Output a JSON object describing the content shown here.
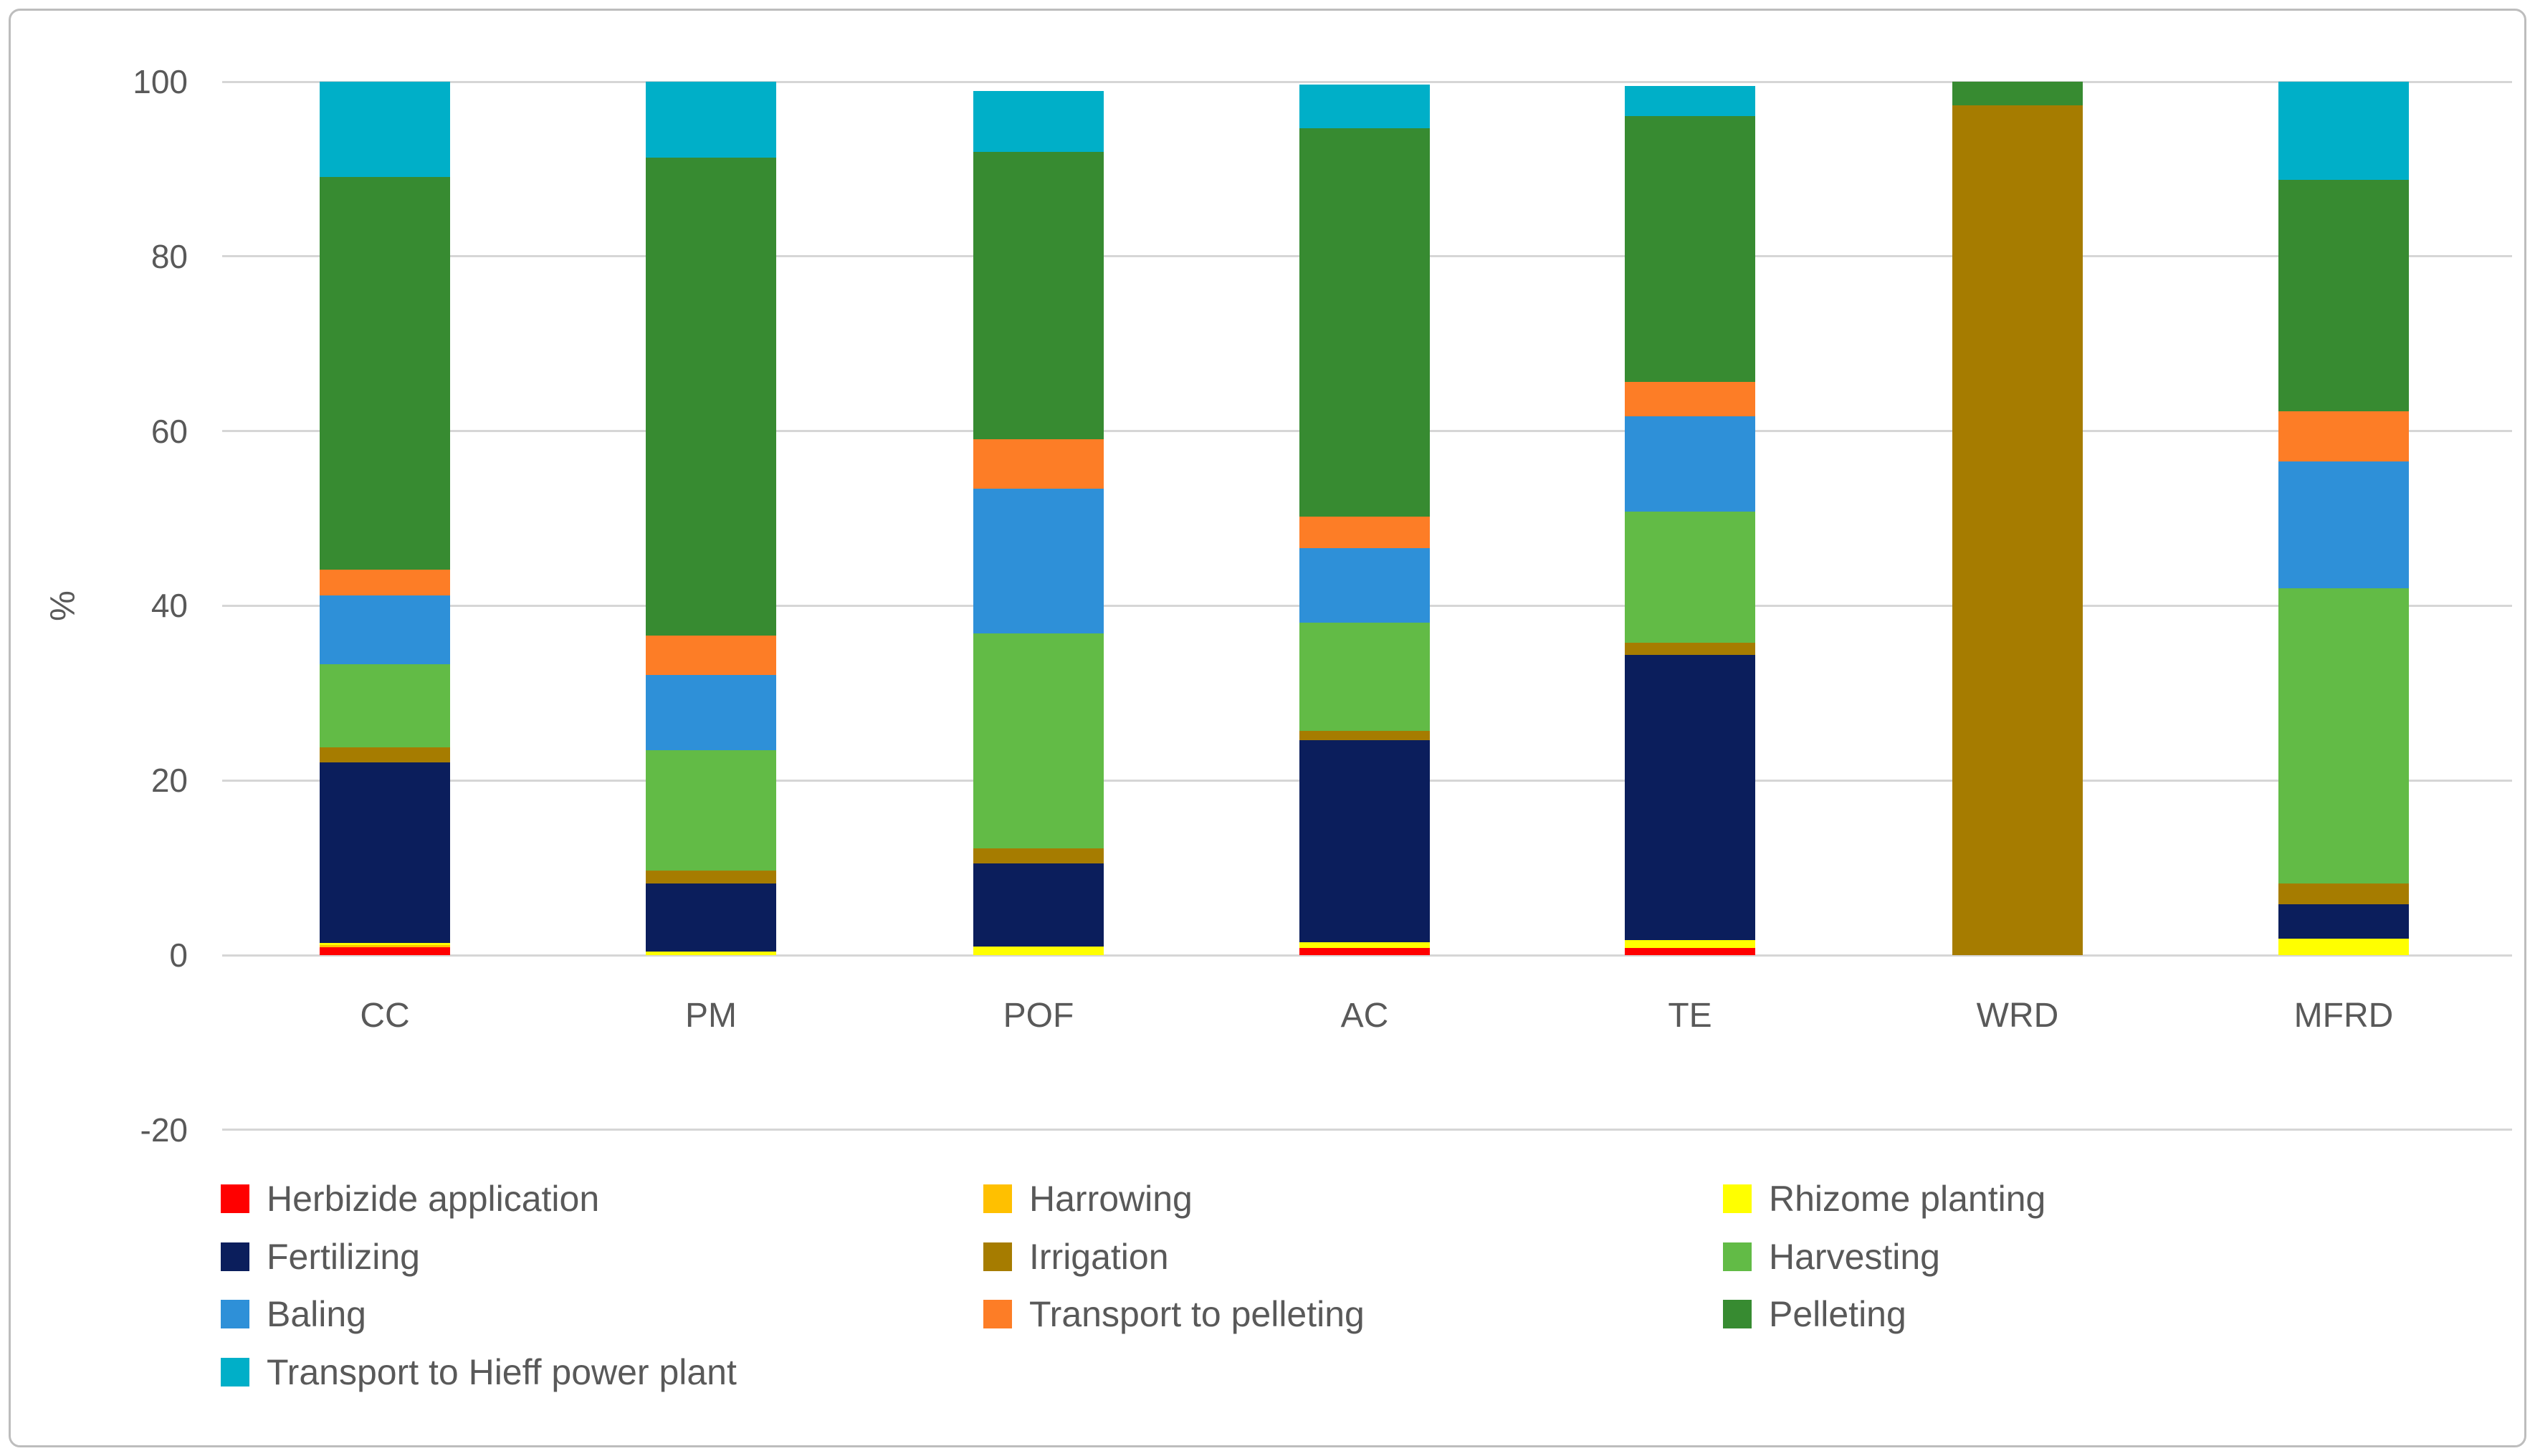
{
  "chart_data": {
    "type": "bar",
    "stacked": true,
    "title": "",
    "ylabel": "%",
    "ylim": [
      -20,
      100
    ],
    "yticks": [
      100,
      80,
      60,
      40,
      20,
      0,
      -20
    ],
    "grid": "horizontal",
    "legend_position": "bottom",
    "categories": [
      "CC",
      "PM",
      "POF",
      "AC",
      "TE",
      "WRD",
      "MFRD"
    ],
    "series": [
      {
        "key": "herbizide",
        "name": "Herbizide application",
        "color": "#ff0000",
        "values": [
          0.9,
          0,
          0,
          0.8,
          0.8,
          0,
          0
        ]
      },
      {
        "key": "harrowing",
        "name": "Harrowing",
        "color": "#ffc000",
        "values": [
          0.25,
          0,
          0,
          0,
          0,
          0,
          0
        ]
      },
      {
        "key": "rhizome",
        "name": "Rhizome planting",
        "color": "#ffff00",
        "values": [
          0.25,
          0.4,
          1.0,
          0.7,
          0.9,
          0,
          1.9
        ]
      },
      {
        "key": "fertilizing",
        "name": "Fertilizing",
        "color": "#0b1e5c",
        "values": [
          20.7,
          7.8,
          9.5,
          23.1,
          32.7,
          0,
          3.9
        ]
      },
      {
        "key": "irrigation",
        "name": "Irrigation",
        "color": "#a67c00",
        "values": [
          1.7,
          1.5,
          1.7,
          1.1,
          1.4,
          97.3,
          2.4
        ]
      },
      {
        "key": "harvesting",
        "name": "Harvesting",
        "color": "#62bb46",
        "values": [
          9.5,
          13.8,
          24.6,
          12.4,
          15.0,
          0,
          33.8
        ]
      },
      {
        "key": "baling",
        "name": "Baling",
        "color": "#2e90d8",
        "values": [
          7.9,
          8.6,
          16.6,
          8.5,
          10.9,
          0,
          14.5
        ]
      },
      {
        "key": "transport_pelleting",
        "name": "Transport to pelleting",
        "color": "#fd7d26",
        "values": [
          2.9,
          4.5,
          5.7,
          3.6,
          3.9,
          0,
          5.8
        ]
      },
      {
        "key": "pelleting",
        "name": "Pelleting",
        "color": "#378b31",
        "values": [
          45.0,
          54.7,
          32.9,
          44.5,
          30.5,
          2.7,
          26.5
        ]
      },
      {
        "key": "transport_hieff",
        "name": "Transport to Hieff power plant",
        "color": "#00afc8",
        "values": [
          10.9,
          8.7,
          6.9,
          5.0,
          3.4,
          0,
          11.2
        ]
      }
    ],
    "legend_columns": [
      [
        "herbizide",
        "fertilizing",
        "baling",
        "transport_hieff"
      ],
      [
        "harrowing",
        "irrigation",
        "transport_pelleting"
      ],
      [
        "rhizome",
        "harvesting",
        "pelleting"
      ]
    ]
  },
  "colors": {
    "text": "#595959",
    "gridline": "#d6d6d6",
    "figure_border": "#bdbdbd",
    "background": "#ffffff"
  }
}
